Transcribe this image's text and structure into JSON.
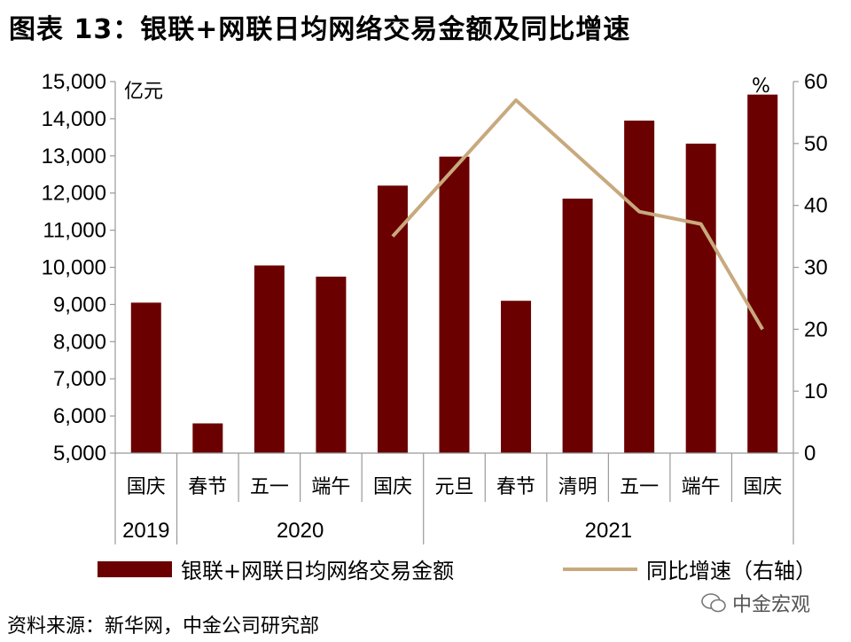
{
  "title": "图表 13：银联+网联日均网络交易金额及同比增速",
  "chart_data": {
    "type": "bar",
    "categories": [
      "国庆",
      "春节",
      "五一",
      "端午",
      "国庆",
      "元旦",
      "春节",
      "清明",
      "五一",
      "端午",
      "国庆"
    ],
    "years": [
      {
        "label": "2019",
        "span": 1
      },
      {
        "label": "2020",
        "span": 4
      },
      {
        "label": "2021",
        "span": 6
      }
    ],
    "series": [
      {
        "name": "银联+网联日均网络交易金额",
        "type": "bar",
        "axis": "left",
        "values": [
          9050,
          5800,
          10050,
          9750,
          12200,
          12980,
          9100,
          11850,
          13950,
          13330,
          14650
        ]
      },
      {
        "name": "同比增速（右轴）",
        "type": "line",
        "axis": "right",
        "values": [
          null,
          null,
          null,
          null,
          35,
          null,
          57,
          null,
          39,
          37,
          20
        ]
      }
    ],
    "y_left": {
      "unit": "亿元",
      "range": [
        5000,
        15000
      ],
      "ticks": [
        "5,000",
        "6,000",
        "7,000",
        "8,000",
        "9,000",
        "10,000",
        "11,000",
        "12,000",
        "13,000",
        "14,000",
        "15,000"
      ]
    },
    "y_right": {
      "unit": "%",
      "range": [
        0,
        60
      ],
      "ticks": [
        "0",
        "10",
        "20",
        "30",
        "40",
        "50",
        "60"
      ]
    },
    "colors": {
      "bar": "#6b0000",
      "line": "#c8a97e"
    },
    "grid": false,
    "legend_position": "bottom"
  },
  "source": "资料来源：新华网，中金公司研究部",
  "watermark": "中金宏观"
}
